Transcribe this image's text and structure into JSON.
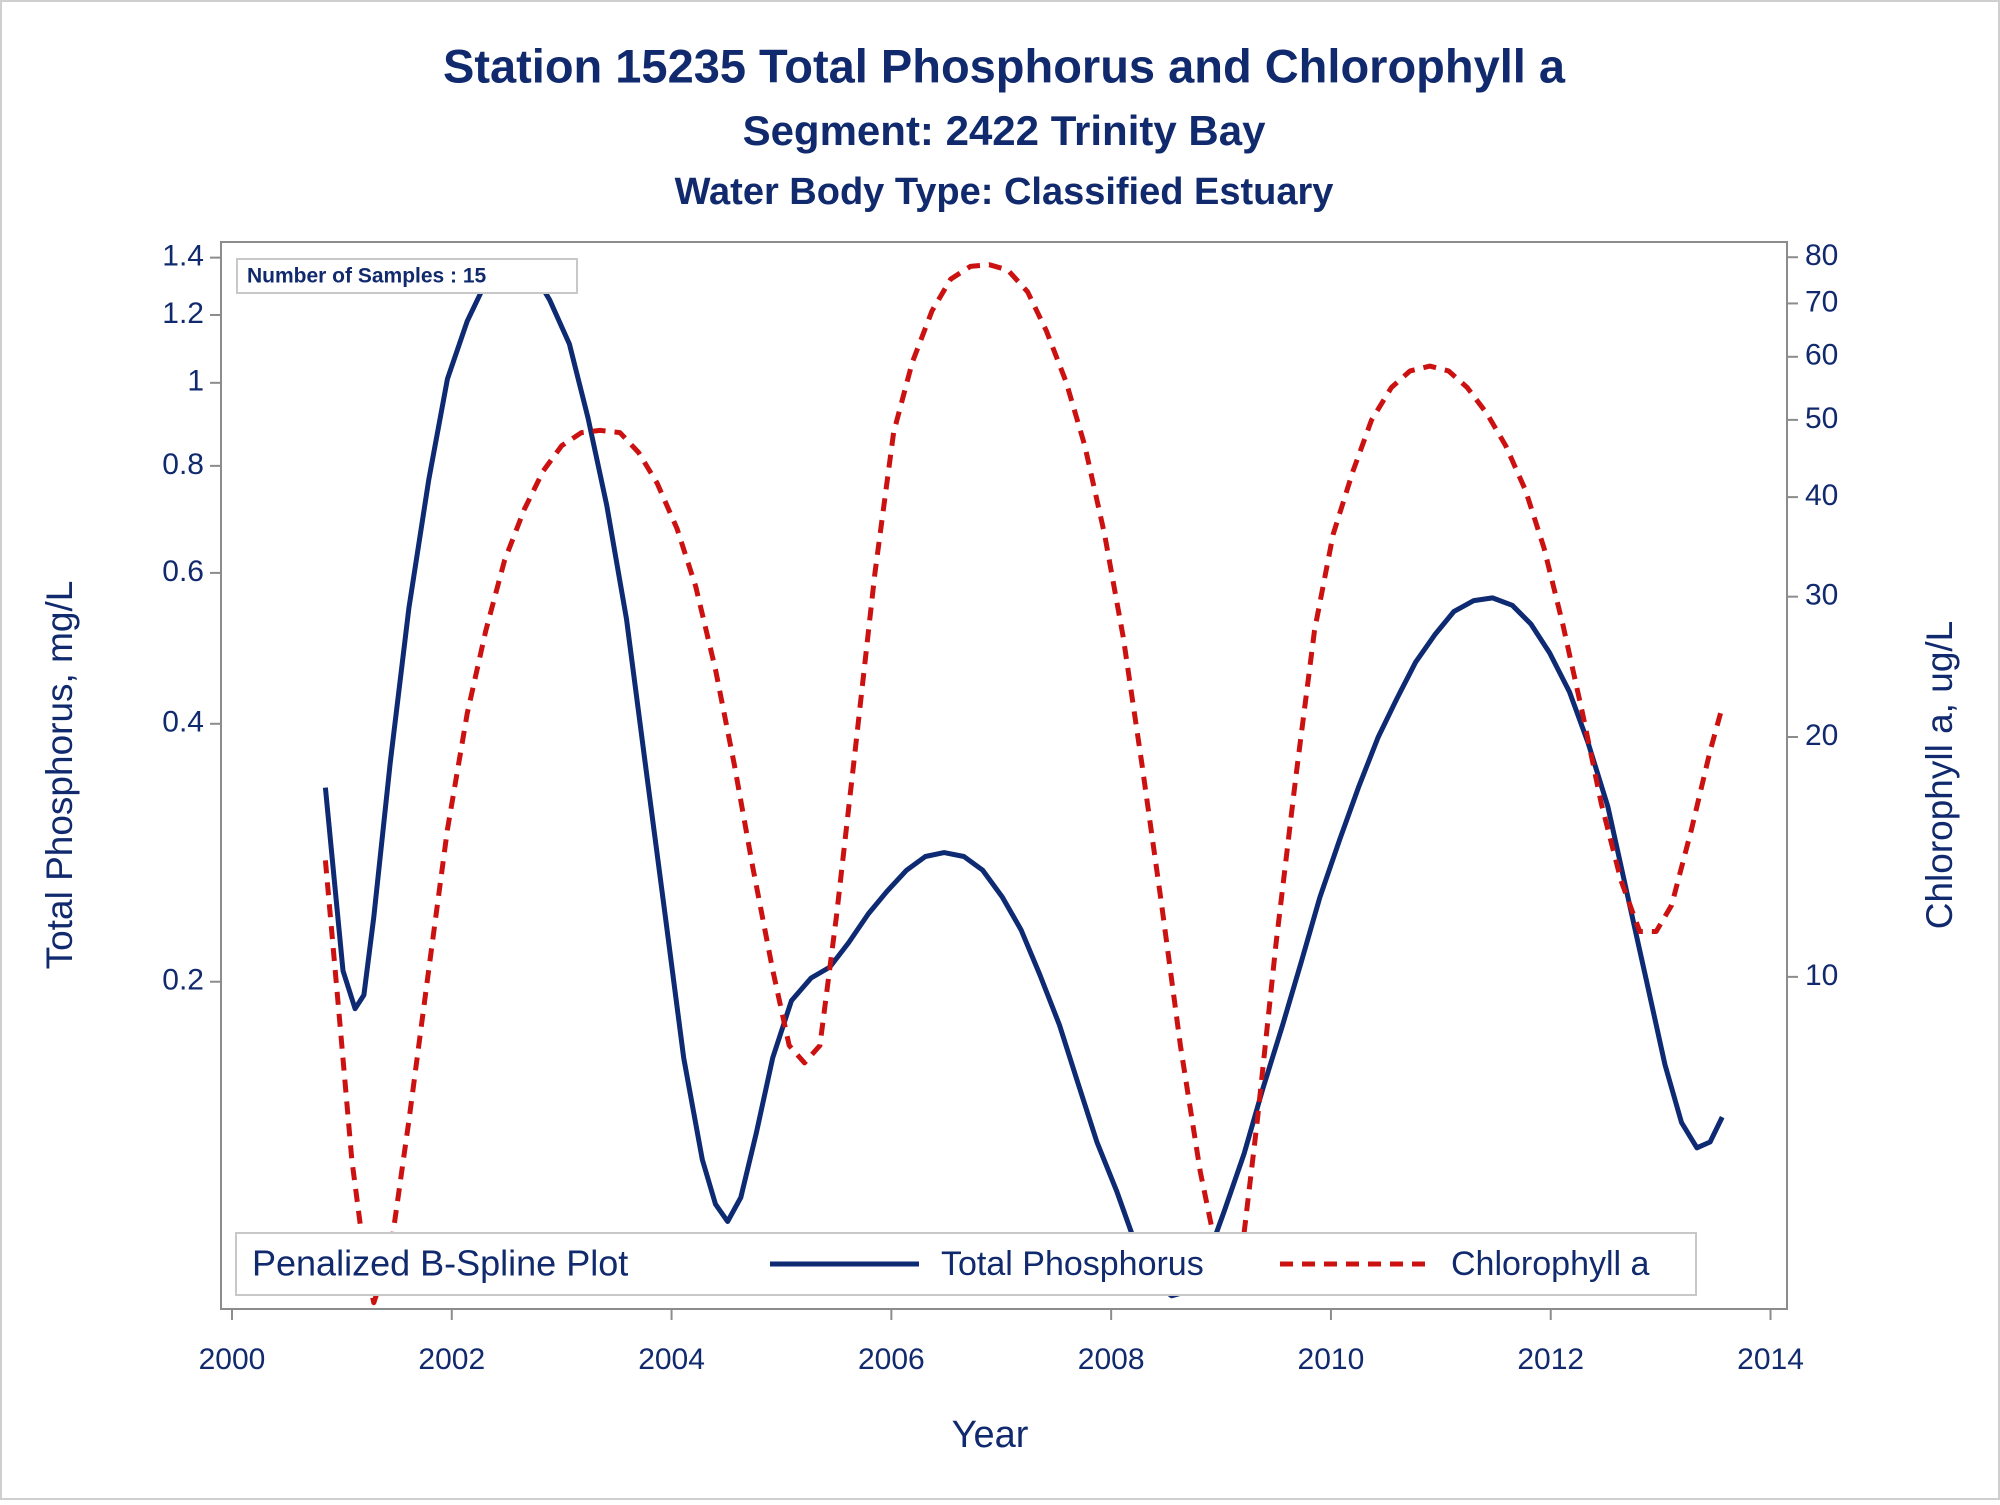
{
  "chart_data": {
    "type": "line",
    "title": "Station 15235  Total Phosphorus and Chlorophyll a",
    "subtitle": [
      "Segment: 2422  Trinity Bay",
      "Water Body Type: Classified Estuary"
    ],
    "xlabel": "Year",
    "ylabel": "Total Phosphorus, mg/L",
    "y2label": "Chlorophyll a, ug/L",
    "annotation": "Number of Samples : 15",
    "legend_title": "Penalized B-Spline Plot",
    "legend_position": "bottom",
    "xlim": [
      1999.9,
      2014.15
    ],
    "xticks": [
      2000,
      2002,
      2004,
      2006,
      2008,
      2010,
      2012,
      2014
    ],
    "ylim": [
      0.083,
      1.46
    ],
    "yticks": [
      0.2,
      0.4,
      0.6,
      0.8,
      1,
      1.2,
      1.4
    ],
    "y_log": true,
    "y2lim": [
      3.83,
      83.6
    ],
    "y2ticks": [
      10,
      20,
      30,
      40,
      50,
      60,
      70,
      80
    ],
    "y2_log": true,
    "series": [
      {
        "name": "Total Phosphorus",
        "color": "#0d2a73",
        "line_style": "solid",
        "axis": "y",
        "x": [
          2000.85,
          2001.01,
          2001.12,
          2001.2,
          2001.29,
          2001.44,
          2001.61,
          2001.79,
          2001.96,
          2002.14,
          2002.31,
          2002.54,
          2002.72,
          2002.89,
          2003.07,
          2003.24,
          2003.41,
          2003.59,
          2003.76,
          2003.94,
          2004.11,
          2004.28,
          2004.4,
          2004.51,
          2004.63,
          2004.77,
          2004.92,
          2005.09,
          2005.27,
          2005.44,
          2005.61,
          2005.79,
          2005.96,
          2006.14,
          2006.31,
          2006.48,
          2006.66,
          2006.83,
          2007.01,
          2007.18,
          2007.35,
          2007.53,
          2007.7,
          2007.87,
          2008.05,
          2008.22,
          2008.4,
          2008.55,
          2008.69,
          2008.86,
          2009.03,
          2009.21,
          2009.38,
          2009.56,
          2009.73,
          2009.9,
          2010.08,
          2010.25,
          2010.43,
          2010.6,
          2010.77,
          2010.95,
          2011.12,
          2011.3,
          2011.47,
          2011.65,
          2011.82,
          2011.99,
          2012.17,
          2012.34,
          2012.52,
          2012.69,
          2012.87,
          2013.04,
          2013.19,
          2013.33,
          2013.45,
          2013.56
        ],
        "values": [
          0.337,
          0.206,
          0.186,
          0.193,
          0.238,
          0.36,
          0.546,
          0.77,
          1.01,
          1.18,
          1.31,
          1.37,
          1.36,
          1.25,
          1.11,
          0.91,
          0.72,
          0.53,
          0.36,
          0.24,
          0.163,
          0.124,
          0.11,
          0.105,
          0.112,
          0.133,
          0.163,
          0.19,
          0.202,
          0.208,
          0.222,
          0.24,
          0.255,
          0.27,
          0.28,
          0.283,
          0.28,
          0.27,
          0.251,
          0.23,
          0.204,
          0.178,
          0.152,
          0.13,
          0.114,
          0.099,
          0.089,
          0.086,
          0.087,
          0.094,
          0.108,
          0.126,
          0.15,
          0.178,
          0.211,
          0.251,
          0.293,
          0.337,
          0.386,
          0.428,
          0.472,
          0.509,
          0.541,
          0.557,
          0.561,
          0.55,
          0.523,
          0.484,
          0.436,
          0.38,
          0.32,
          0.255,
          0.201,
          0.16,
          0.137,
          0.128,
          0.13,
          0.139
        ]
      },
      {
        "name": "Chlorophyll a",
        "color": "#cc1111",
        "line_style": "dashed",
        "axis": "y2",
        "x": [
          2000.85,
          2000.98,
          2001.09,
          2001.21,
          2001.29,
          2001.44,
          2001.61,
          2001.79,
          2001.96,
          2002.14,
          2002.31,
          2002.48,
          2002.66,
          2002.83,
          2003.0,
          2003.18,
          2003.35,
          2003.53,
          2003.7,
          2003.87,
          2004.05,
          2004.22,
          2004.4,
          2004.57,
          2004.74,
          2004.92,
          2005.07,
          2005.21,
          2005.35,
          2005.5,
          2005.67,
          2005.85,
          2006.02,
          2006.19,
          2006.37,
          2006.54,
          2006.72,
          2006.89,
          2007.06,
          2007.24,
          2007.41,
          2007.59,
          2007.76,
          2007.94,
          2008.11,
          2008.28,
          2008.46,
          2008.63,
          2008.81,
          2008.95,
          2009.06,
          2009.18,
          2009.33,
          2009.5,
          2009.68,
          2009.85,
          2010.02,
          2010.2,
          2010.37,
          2010.55,
          2010.72,
          2010.9,
          2011.07,
          2011.24,
          2011.42,
          2011.59,
          2011.77,
          2011.94,
          2012.11,
          2012.29,
          2012.46,
          2012.64,
          2012.81,
          2012.96,
          2013.1,
          2013.28,
          2013.45,
          2013.56
        ],
        "values": [
          14.0,
          8.8,
          5.9,
          4.4,
          3.9,
          4.5,
          6.6,
          10.2,
          15.3,
          21.4,
          27.2,
          33.3,
          38.6,
          43.1,
          46.4,
          48.2,
          48.5,
          48.2,
          45.5,
          41.6,
          36.5,
          30.9,
          24.3,
          18.5,
          13.7,
          10.2,
          8.2,
          7.8,
          8.2,
          11.9,
          19.2,
          32.1,
          48.2,
          59.0,
          68.5,
          75.1,
          77.9,
          78.3,
          77.1,
          72.4,
          64.7,
          55.8,
          46.4,
          35.9,
          26.7,
          18.5,
          12.3,
          8.2,
          5.7,
          4.6,
          4.1,
          4.4,
          6.6,
          11.0,
          17.8,
          27.2,
          35.9,
          43.1,
          50.0,
          54.9,
          57.6,
          58.4,
          57.6,
          54.9,
          50.9,
          46.4,
          40.8,
          34.5,
          27.7,
          21.4,
          16.5,
          13.2,
          11.4,
          11.4,
          12.3,
          15.3,
          19.2,
          21.8
        ]
      }
    ]
  }
}
